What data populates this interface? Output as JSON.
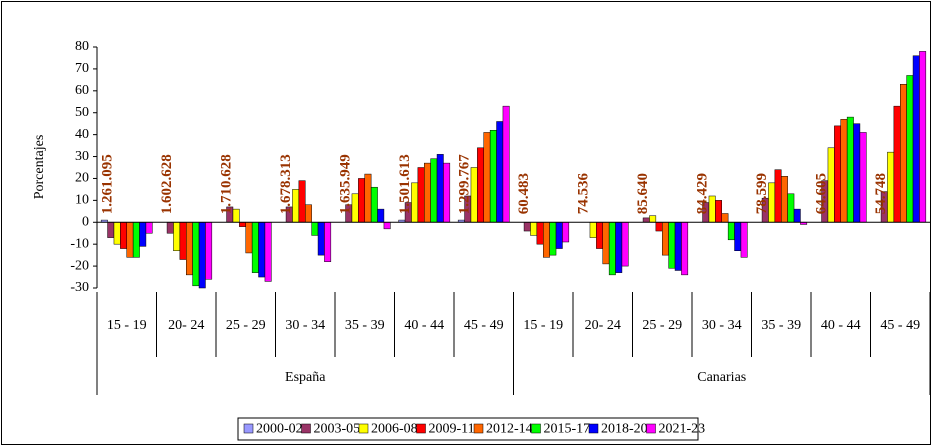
{
  "chart_data": {
    "type": "bar",
    "y_axis_label": "Porcentajes",
    "categories": [
      "15 - 19",
      "20- 24",
      "25 - 29",
      "30 - 34",
      "35 - 39",
      "40 - 44",
      "45 - 49",
      "15 - 19",
      "20- 24",
      "25 - 29",
      "30 - 34",
      "35 - 39",
      "40 - 44",
      "45 - 49"
    ],
    "groups": [
      "España",
      "Canarias"
    ],
    "annotations": [
      "1.261.095",
      "1.602.628",
      "1.710.628",
      "1.678.313",
      "1.635.949",
      "1.501.613",
      "1.299.767",
      "60.483",
      "74.536",
      "85.640",
      "84.429",
      "78.599",
      "64.605",
      "54.748"
    ],
    "series": [
      {
        "name": "2000-02",
        "color": "#9999ff",
        "values": [
          1,
          0,
          0,
          0,
          0,
          1,
          1,
          0,
          0,
          0,
          0,
          0,
          0,
          0
        ]
      },
      {
        "name": "2003-05",
        "color": "#993366",
        "values": [
          -7,
          -5,
          7,
          7,
          8,
          9,
          12,
          -4,
          0,
          2,
          9,
          11,
          19,
          14
        ]
      },
      {
        "name": "2006-08",
        "color": "#ffff00",
        "values": [
          -10,
          -13,
          6,
          15,
          13,
          18,
          25,
          -6,
          -7,
          3,
          12,
          18,
          34,
          32
        ]
      },
      {
        "name": "2009-11",
        "color": "#ff0000",
        "values": [
          -12,
          -17,
          -2,
          19,
          20,
          25,
          34,
          -10,
          -12,
          -4,
          10,
          24,
          44,
          53
        ]
      },
      {
        "name": "2012-14",
        "color": "#ff6600",
        "values": [
          -16,
          -24,
          -14,
          8,
          22,
          27,
          41,
          -16,
          -19,
          -15,
          4,
          21,
          47,
          63
        ]
      },
      {
        "name": "2015-17",
        "color": "#00ff00",
        "values": [
          -16,
          -29,
          -23,
          -6,
          16,
          29,
          42,
          -15,
          -24,
          -21,
          -8,
          13,
          48,
          67
        ]
      },
      {
        "name": "2018-20",
        "color": "#0000ff",
        "values": [
          -11,
          -30,
          -25,
          -15,
          6,
          31,
          46,
          -12,
          -23,
          -22,
          -13,
          6,
          45,
          76
        ]
      },
      {
        "name": "2021-23",
        "color": "#ff00ff",
        "values": [
          -5,
          -26,
          -27,
          -18,
          -3,
          27,
          53,
          -9,
          -20,
          -24,
          -16,
          -1,
          41,
          78
        ]
      }
    ],
    "ylim": [
      -30,
      80
    ],
    "yticks": [
      -30,
      -20,
      -10,
      0,
      10,
      20,
      30,
      40,
      50,
      60,
      70,
      80
    ],
    "grid": false
  }
}
